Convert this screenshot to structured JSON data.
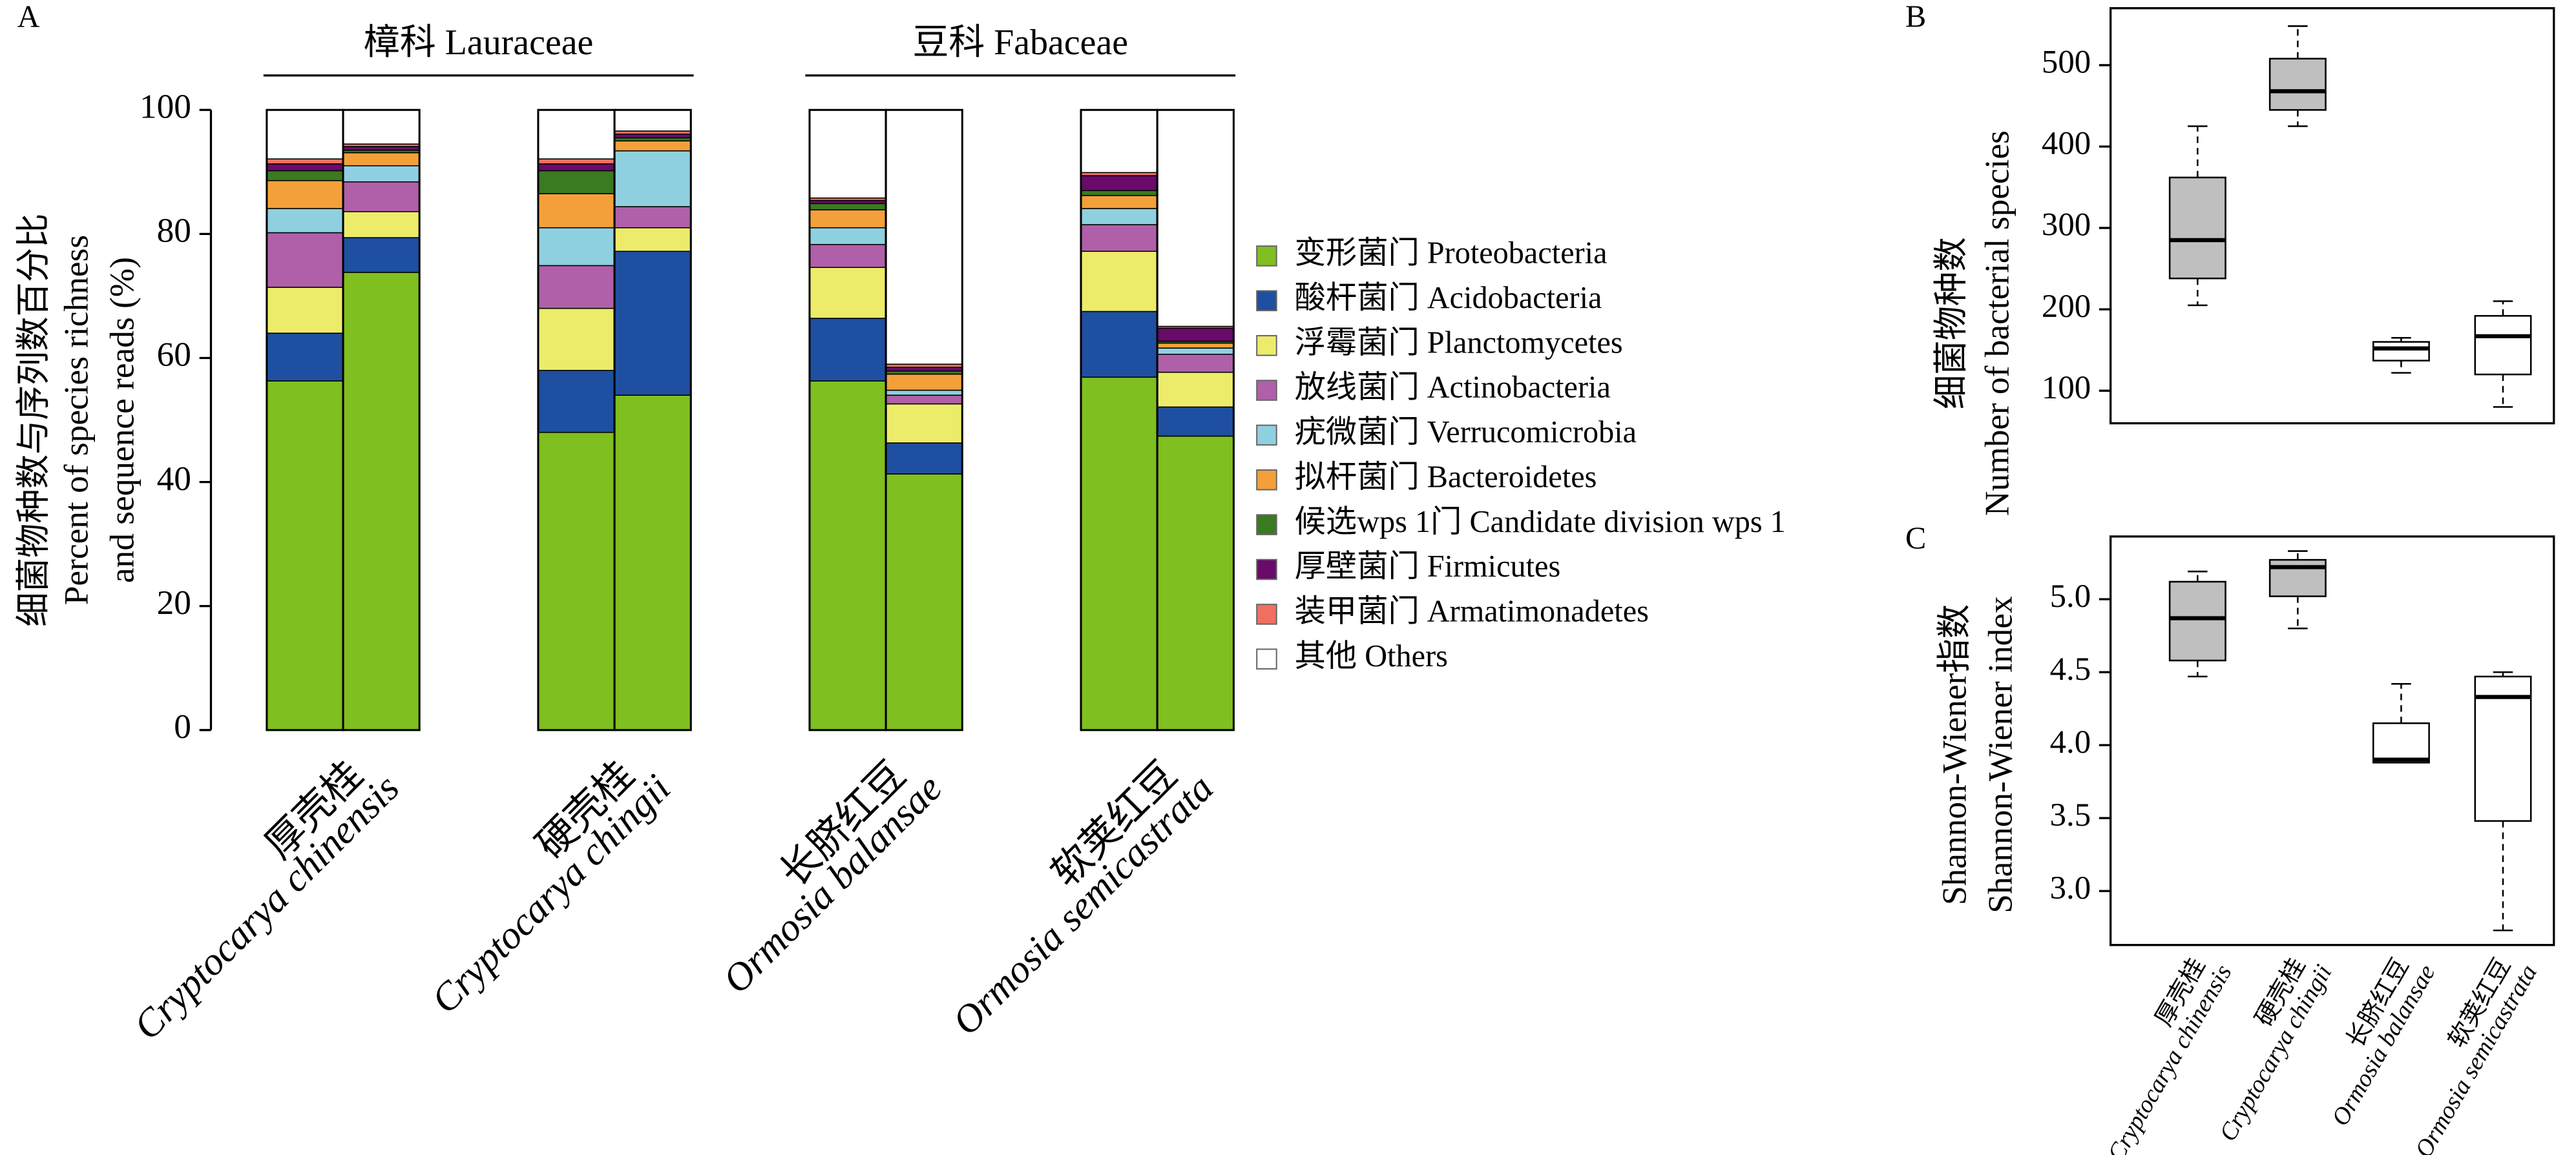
{
  "chart_data": [
    {
      "type": "stacked_bar",
      "panel": "A",
      "families": [
        {
          "label": "樟科 Lauraceae"
        },
        {
          "label": "豆科 Fabaceae"
        }
      ],
      "groups": [
        {
          "name": "厚壳桂",
          "latin": "Cryptocarya chinensis"
        },
        {
          "name": "硬壳桂",
          "latin": "Cryptocarya chingii"
        },
        {
          "name": "长脐红豆",
          "latin": "Ormosia balansae"
        },
        {
          "name": "软荚红豆",
          "latin": "Ormosia semicastrata"
        }
      ],
      "ylabel": [
        "细菌物种数与序列数百分比",
        "Percent of species richness",
        "and sequence reads (%)"
      ],
      "ylim": [
        0,
        100
      ],
      "yticks": [
        0,
        20,
        40,
        60,
        80,
        100
      ],
      "series": [
        {
          "name": "变形菌门 Proteobacteria",
          "color": "#7fbf1f",
          "values": [
            56.3,
            73.8,
            48.0,
            54.0,
            56.3,
            41.3,
            56.9,
            47.4
          ]
        },
        {
          "name": "酸杆菌门 Acidobacteria",
          "color": "#1f4fa0",
          "values": [
            7.7,
            5.6,
            10.0,
            23.2,
            10.1,
            5.0,
            10.6,
            4.7
          ]
        },
        {
          "name": "浮霉菌门 Planctomycetes",
          "color": "#ecec6a",
          "values": [
            7.4,
            4.2,
            10.0,
            3.8,
            8.2,
            6.3,
            9.7,
            5.6
          ]
        },
        {
          "name": "放线菌门 Actinobacteria",
          "color": "#b060a8",
          "values": [
            8.8,
            4.8,
            6.9,
            3.4,
            3.7,
            1.4,
            4.3,
            2.9
          ]
        },
        {
          "name": "疣微菌门 Verrucomicrobia",
          "color": "#8fd0e0",
          "values": [
            3.9,
            2.6,
            6.1,
            9.0,
            2.7,
            0.8,
            2.6,
            1.0
          ]
        },
        {
          "name": "拟杆菌门 Bacteroidetes",
          "color": "#f4a03a",
          "values": [
            4.5,
            2.1,
            5.5,
            1.6,
            2.9,
            2.6,
            2.1,
            0.8
          ]
        },
        {
          "name": "候选wps 1门 Candidate division wps 1",
          "color": "#3a7a20",
          "values": [
            1.6,
            0.4,
            3.7,
            0.5,
            1.0,
            0.5,
            0.8,
            0.3
          ]
        },
        {
          "name": "厚壁菌门 Firmicutes",
          "color": "#6a0a6a",
          "values": [
            1.1,
            0.6,
            1.1,
            0.6,
            0.5,
            0.6,
            2.4,
            2.1
          ]
        },
        {
          "name": "装甲菌门 Armatimonadetes",
          "color": "#ef7060",
          "values": [
            0.8,
            0.4,
            0.8,
            0.5,
            0.4,
            0.5,
            0.5,
            0.3
          ]
        },
        {
          "name": "其他 Others",
          "color": "#ffffff",
          "values": [
            7.9,
            5.5,
            7.9,
            3.4,
            14.2,
            41.0,
            10.1,
            34.9
          ]
        }
      ]
    },
    {
      "type": "box",
      "panel": "B",
      "ylabel": [
        "细菌物种数",
        "Number of bacterial species"
      ],
      "ylim": [
        60,
        570
      ],
      "yticks": [
        100,
        200,
        300,
        400,
        500
      ],
      "boxes": [
        {
          "min": 205,
          "q1": 238,
          "median": 285,
          "q3": 362,
          "max": 425,
          "color": "#bfbfbf"
        },
        {
          "min": 425,
          "q1": 445,
          "median": 468,
          "q3": 508,
          "max": 548,
          "color": "#bfbfbf"
        },
        {
          "min": 122,
          "q1": 137,
          "median": 152,
          "q3": 160,
          "max": 165,
          "color": "#ffffff"
        },
        {
          "min": 80,
          "q1": 120,
          "median": 167,
          "q3": 192,
          "max": 210,
          "color": "#ffffff"
        }
      ]
    },
    {
      "type": "box",
      "panel": "C",
      "ylabel": [
        "Shannon-Wiener指数",
        "Shannon-Wiener index"
      ],
      "ylim": [
        2.63,
        5.43
      ],
      "yticks": [
        {
          "value": 3,
          "label": "3.0"
        },
        3.5,
        {
          "value": 4,
          "label": "4.0"
        },
        4.5,
        {
          "value": 5,
          "label": "5.0"
        }
      ],
      "categories": [
        {
          "name": "厚壳桂",
          "latin": "Cryptocarya chinensis"
        },
        {
          "name": "硬壳桂",
          "latin": "Cryptocarya chingii"
        },
        {
          "name": "长脐红豆",
          "latin": "Ormosia balansae"
        },
        {
          "name": "软荚红豆",
          "latin": "Ormosia semicastrata"
        }
      ],
      "boxes": [
        {
          "min": 4.47,
          "q1": 4.58,
          "median": 4.87,
          "q3": 5.12,
          "max": 5.19,
          "color": "#bfbfbf"
        },
        {
          "min": 4.8,
          "q1": 5.02,
          "median": 5.22,
          "q3": 5.27,
          "max": 5.33,
          "color": "#bfbfbf"
        },
        {
          "min": 3.88,
          "q1": 3.88,
          "median": 3.9,
          "q3": 4.15,
          "max": 4.42,
          "color": "#ffffff"
        },
        {
          "min": 2.73,
          "q1": 3.48,
          "median": 4.33,
          "q3": 4.47,
          "max": 4.5,
          "color": "#ffffff"
        }
      ]
    }
  ]
}
